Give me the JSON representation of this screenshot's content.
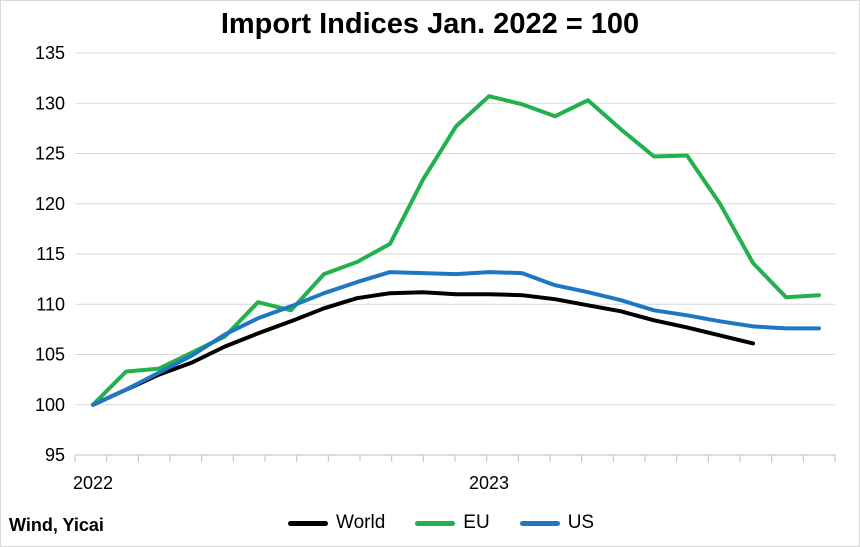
{
  "chart_data": {
    "type": "line",
    "title": "Import Indices Jan. 2022 = 100",
    "source": "Wind, Yicai",
    "xlabel": "",
    "ylabel": "",
    "ylim": [
      95,
      135
    ],
    "yticks": [
      95,
      100,
      105,
      110,
      115,
      120,
      125,
      130,
      135
    ],
    "x_tick_labels": [
      {
        "index": 0,
        "label": "2022"
      },
      {
        "index": 12,
        "label": "2023"
      }
    ],
    "months": [
      "2022-01",
      "2022-02",
      "2022-03",
      "2022-04",
      "2022-05",
      "2022-06",
      "2022-07",
      "2022-08",
      "2022-09",
      "2022-10",
      "2022-11",
      "2022-12",
      "2023-01",
      "2023-02",
      "2023-03",
      "2023-04",
      "2023-05",
      "2023-06",
      "2023-07",
      "2023-08",
      "2023-09",
      "2023-10",
      "2023-11",
      "2023-12"
    ],
    "grid": true,
    "legend_position": "bottom",
    "series": [
      {
        "name": "World",
        "color": "#000000",
        "values": [
          100,
          101.5,
          103,
          104.2,
          105.8,
          107.1,
          108.3,
          109.6,
          110.6,
          111.1,
          111.2,
          111.0,
          111.0,
          110.9,
          110.5,
          109.9,
          109.3,
          108.4,
          107.7,
          106.9,
          106.1,
          null,
          null,
          null
        ]
      },
      {
        "name": "EU",
        "color": "#22b14c",
        "values": [
          100,
          103.3,
          103.6,
          105.2,
          106.8,
          110.2,
          109.4,
          113.0,
          114.2,
          116.0,
          122.4,
          127.7,
          130.7,
          129.9,
          128.7,
          130.3,
          127.4,
          124.7,
          124.8,
          120.0,
          114.1,
          110.7,
          110.9,
          null
        ]
      },
      {
        "name": "US",
        "color": "#1f77c4",
        "values": [
          100,
          101.5,
          103.2,
          104.9,
          107.0,
          108.6,
          109.8,
          111.1,
          112.2,
          113.2,
          113.1,
          113.0,
          113.2,
          113.1,
          111.9,
          111.2,
          110.4,
          109.4,
          108.9,
          108.3,
          107.8,
          107.6,
          107.6,
          null
        ]
      }
    ]
  }
}
